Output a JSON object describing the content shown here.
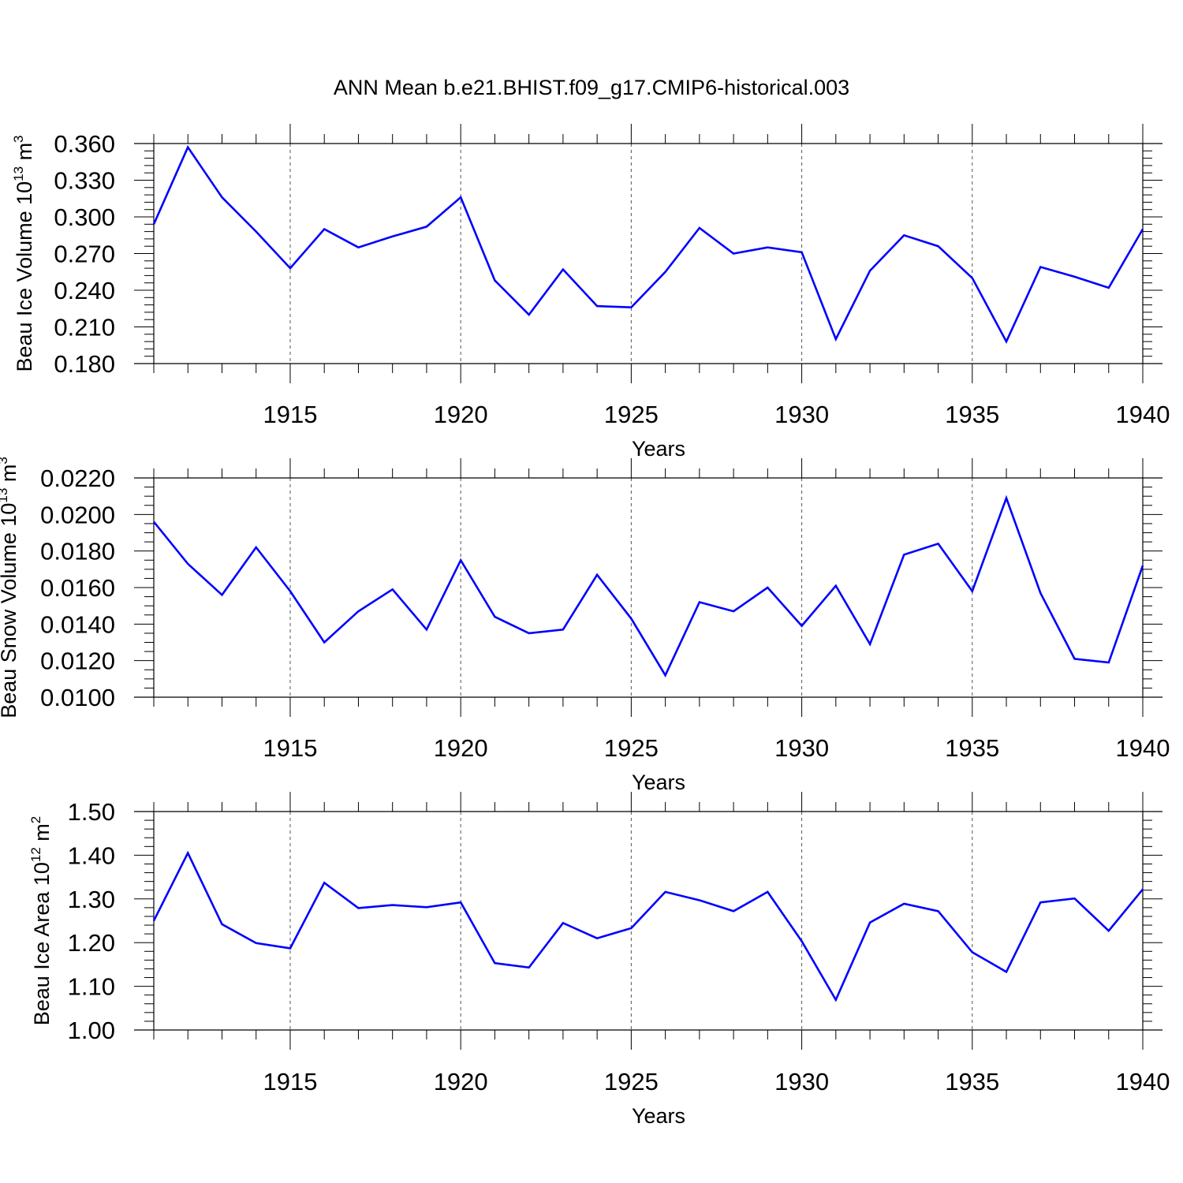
{
  "figure": {
    "title": "ANN Mean b.e21.BHIST.f09_g17.CMIP6-historical.003"
  },
  "colors": {
    "line": "#0000ff",
    "axis": "#000000",
    "grid": "#555555",
    "background": "#ffffff"
  },
  "chart_data": [
    {
      "type": "line",
      "title": "ANN Mean b.e21.BHIST.f09_g17.CMIP6-historical.003",
      "xlabel": "Years",
      "ylabel": {
        "base": "Beau Ice Volume 10",
        "sup1": "13",
        "mid": " m",
        "sup2": "3"
      },
      "x": [
        1911,
        1912,
        1913,
        1914,
        1915,
        1916,
        1917,
        1918,
        1919,
        1920,
        1921,
        1922,
        1923,
        1924,
        1925,
        1926,
        1927,
        1928,
        1929,
        1930,
        1931,
        1932,
        1933,
        1934,
        1935,
        1936,
        1937,
        1938,
        1939,
        1940
      ],
      "series": [
        {
          "values": [
            0.294,
            0.357,
            0.316,
            0.288,
            0.258,
            0.29,
            0.275,
            0.284,
            0.292,
            0.316,
            0.248,
            0.22,
            0.257,
            0.227,
            0.226,
            0.255,
            0.291,
            0.27,
            0.275,
            0.271,
            0.2,
            0.256,
            0.285,
            0.276,
            0.25,
            0.198,
            0.259,
            0.251,
            0.242,
            0.29
          ]
        }
      ],
      "xlim": [
        1911,
        1940
      ],
      "ylim": [
        0.18,
        0.36
      ],
      "xticks": [
        "1915",
        "1920",
        "1925",
        "1930",
        "1935",
        "1940"
      ],
      "yticks": [
        "0.180",
        "0.210",
        "0.240",
        "0.270",
        "0.300",
        "0.330",
        "0.360"
      ],
      "grid": "vertical dashed at major x ticks",
      "legend": "none"
    },
    {
      "type": "line",
      "xlabel": "Years",
      "ylabel": {
        "base": "Beau Snow Volume 10",
        "sup1": "13",
        "mid": " m",
        "sup2": "3"
      },
      "x": [
        1911,
        1912,
        1913,
        1914,
        1915,
        1916,
        1917,
        1918,
        1919,
        1920,
        1921,
        1922,
        1923,
        1924,
        1925,
        1926,
        1927,
        1928,
        1929,
        1930,
        1931,
        1932,
        1933,
        1934,
        1935,
        1936,
        1937,
        1938,
        1939,
        1940
      ],
      "series": [
        {
          "values": [
            0.0196,
            0.0173,
            0.0156,
            0.0182,
            0.0158,
            0.013,
            0.0147,
            0.0159,
            0.0137,
            0.0175,
            0.0144,
            0.0135,
            0.0137,
            0.0167,
            0.0143,
            0.0112,
            0.0152,
            0.0147,
            0.016,
            0.0139,
            0.0161,
            0.0129,
            0.0178,
            0.0184,
            0.0158,
            0.0209,
            0.0157,
            0.0121,
            0.0119,
            0.0172
          ]
        }
      ],
      "xlim": [
        1911,
        1940
      ],
      "ylim": [
        0.01,
        0.022
      ],
      "xticks": [
        "1915",
        "1920",
        "1925",
        "1930",
        "1935",
        "1940"
      ],
      "yticks": [
        "0.0100",
        "0.0120",
        "0.0140",
        "0.0160",
        "0.0180",
        "0.0200",
        "0.0220"
      ],
      "grid": "vertical dashed at major x ticks",
      "legend": "none"
    },
    {
      "type": "line",
      "xlabel": "Years",
      "ylabel": {
        "base": "Beau Ice Area 10",
        "sup1": "12",
        "mid": " m",
        "sup2": "2"
      },
      "x": [
        1911,
        1912,
        1913,
        1914,
        1915,
        1916,
        1917,
        1918,
        1919,
        1920,
        1921,
        1922,
        1923,
        1924,
        1925,
        1926,
        1927,
        1928,
        1929,
        1930,
        1931,
        1932,
        1933,
        1934,
        1935,
        1936,
        1937,
        1938,
        1939,
        1940
      ],
      "series": [
        {
          "values": [
            1.25,
            1.405,
            1.242,
            1.199,
            1.187,
            1.337,
            1.279,
            1.286,
            1.281,
            1.292,
            1.153,
            1.143,
            1.245,
            1.21,
            1.233,
            1.316,
            1.297,
            1.272,
            1.316,
            1.203,
            1.069,
            1.246,
            1.289,
            1.272,
            1.178,
            1.133,
            1.292,
            1.301,
            1.227,
            1.322
          ]
        }
      ],
      "xlim": [
        1911,
        1940
      ],
      "ylim": [
        1.0,
        1.5
      ],
      "xticks": [
        "1915",
        "1920",
        "1925",
        "1930",
        "1935",
        "1940"
      ],
      "yticks": [
        "1.00",
        "1.10",
        "1.20",
        "1.30",
        "1.40",
        "1.50"
      ],
      "grid": "vertical dashed at major x ticks",
      "legend": "none"
    }
  ]
}
